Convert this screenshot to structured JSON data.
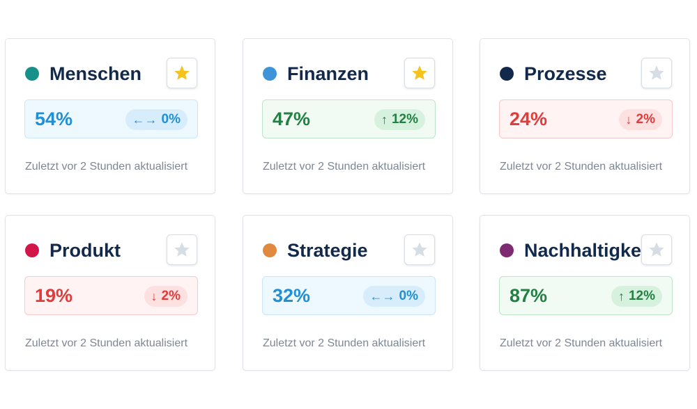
{
  "cards": [
    {
      "title": "Menschen",
      "dot_color": "#16918a",
      "starred": true,
      "percent": "54%",
      "trend": "neutral",
      "trend_arrow": "←→",
      "trend_value": "0%",
      "updated": "Zuletzt vor 2 Stunden aktualisiert"
    },
    {
      "title": "Finanzen",
      "dot_color": "#3f93d8",
      "starred": true,
      "percent": "47%",
      "trend": "up",
      "trend_arrow": "↑",
      "trend_value": "12%",
      "updated": "Zuletzt vor 2 Stunden aktualisiert"
    },
    {
      "title": "Prozesse",
      "dot_color": "#13294b",
      "starred": false,
      "percent": "24%",
      "trend": "down",
      "trend_arrow": "↓",
      "trend_value": "2%",
      "updated": "Zuletzt vor 2 Stunden aktualisiert"
    },
    {
      "title": "Produkt",
      "dot_color": "#d3164a",
      "starred": false,
      "percent": "19%",
      "trend": "down",
      "trend_arrow": "↓",
      "trend_value": "2%",
      "updated": "Zuletzt vor 2 Stunden aktualisiert"
    },
    {
      "title": "Strategie",
      "dot_color": "#df8a3e",
      "starred": false,
      "percent": "32%",
      "trend": "neutral",
      "trend_arrow": "←→",
      "trend_value": "0%",
      "updated": "Zuletzt vor 2 Stunden aktualisiert"
    },
    {
      "title": "Nachhaltigkeit",
      "dot_color": "#7d2a72",
      "starred": false,
      "percent": "87%",
      "trend": "up",
      "trend_arrow": "↑",
      "trend_value": "12%",
      "updated": "Zuletzt vor 2 Stunden aktualisiert"
    }
  ],
  "star_colors": {
    "active": "#f6c31c",
    "inactive": "#d7dde5"
  },
  "star_icon": "star-icon"
}
